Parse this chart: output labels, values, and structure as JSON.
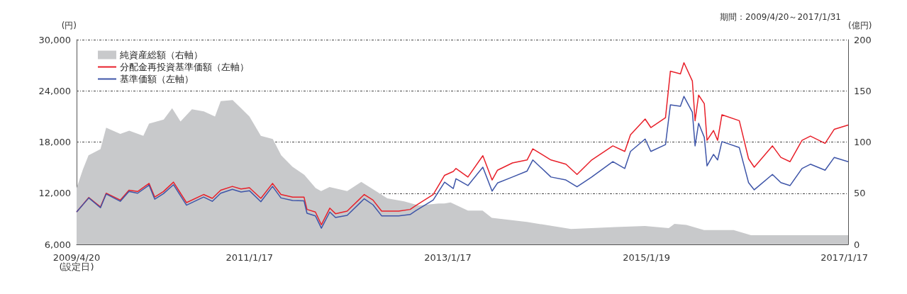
{
  "chart_data": {
    "type": "line",
    "ylabel": "(円)",
    "y2label": "(億円)",
    "annotations": [
      "期間：2009/4/20～2017/1/31"
    ],
    "xlim": [
      "2009-04-20",
      "2017-01-31"
    ],
    "xticks": [
      {
        "value": "2009-04-20",
        "label": "2009/4/20\n(設定日)"
      },
      {
        "value": "2011-01-17",
        "label": "2011/1/17"
      },
      {
        "value": "2013-01-17",
        "label": "2013/1/17"
      },
      {
        "value": "2015-01-19",
        "label": "2015/1/19"
      },
      {
        "value": "2017-01-17",
        "label": "2017/1/17"
      }
    ],
    "ylim": [
      6000,
      30000
    ],
    "yticks": [
      {
        "value": 6000,
        "label": "6,000"
      },
      {
        "value": 12000,
        "label": "12,000"
      },
      {
        "value": 18000,
        "label": "18,000"
      },
      {
        "value": 24000,
        "label": "24,000"
      },
      {
        "value": 30000,
        "label": "30,000"
      }
    ],
    "y2lim": [
      0,
      200
    ],
    "y2ticks": [
      0,
      50,
      100,
      150,
      200
    ],
    "grid": "y",
    "legend": "top left",
    "series": [
      {
        "name": "純資産総額（右軸）",
        "type": "area",
        "axis": "y2",
        "color": "#c8c9cb",
        "x": [
          "2009-04-20",
          "2009-05-13",
          "2009-06-03",
          "2009-07-17",
          "2009-08-07",
          "2009-09-28",
          "2009-10-31",
          "2009-12-22",
          "2010-01-12",
          "2010-03-07",
          "2010-04-07",
          "2010-05-08",
          "2010-06-19",
          "2010-08-02",
          "2010-09-12",
          "2010-10-03",
          "2010-11-16",
          "2010-12-17",
          "2011-01-17",
          "2011-02-28",
          "2011-04-13",
          "2011-05-14",
          "2011-06-24",
          "2011-08-07",
          "2011-09-18",
          "2011-10-08",
          "2011-11-08",
          "2012-01-12",
          "2012-03-04",
          "2012-04-27",
          "2012-06-08",
          "2012-08-09",
          "2012-10-02",
          "2012-12-14",
          "2013-01-04",
          "2013-01-27",
          "2013-04-01",
          "2013-05-25",
          "2013-06-28",
          "2013-11-04",
          "2014-04-16",
          "2014-09-27",
          "2015-01-13",
          "2015-04-11",
          "2015-05-02",
          "2015-06-15",
          "2015-08-19",
          "2015-12-06",
          "2016-02-08",
          "2017-01-31"
        ],
        "values": [
          55,
          73,
          87,
          93,
          114,
          108,
          111,
          106,
          118,
          122,
          133,
          120,
          132,
          130,
          125,
          140,
          141,
          133,
          125,
          106,
          103,
          87,
          76,
          68,
          55,
          52,
          56,
          52,
          61,
          52,
          45,
          42,
          38,
          40,
          40,
          41,
          33,
          33,
          26,
          22,
          15,
          17,
          18,
          16,
          20,
          19,
          14,
          14,
          9,
          9
        ]
      },
      {
        "name": "分配金再投資基準価額（左軸）",
        "color": "#e8202a",
        "x": [
          "2009-04-20",
          "2009-06-04",
          "2009-07-17",
          "2009-08-07",
          "2009-09-28",
          "2009-10-30",
          "2009-12-01",
          "2010-01-12",
          "2010-02-02",
          "2010-03-06",
          "2010-04-12",
          "2010-05-30",
          "2010-08-01",
          "2010-09-02",
          "2010-10-03",
          "2010-11-15",
          "2010-12-17",
          "2011-01-17",
          "2011-02-28",
          "2011-04-12",
          "2011-05-13",
          "2011-06-25",
          "2011-08-06",
          "2011-08-17",
          "2011-09-17",
          "2011-10-09",
          "2011-11-09",
          "2011-11-30",
          "2012-01-12",
          "2012-03-15",
          "2012-04-16",
          "2012-05-18",
          "2012-07-20",
          "2012-08-31",
          "2012-09-21",
          "2012-11-24",
          "2013-01-05",
          "2013-02-06",
          "2013-02-16",
          "2013-04-01",
          "2013-05-26",
          "2013-06-29",
          "2013-07-19",
          "2013-09-12",
          "2013-11-05",
          "2013-11-26",
          "2014-02-01",
          "2014-03-28",
          "2014-05-08",
          "2014-07-01",
          "2014-09-17",
          "2014-10-31",
          "2014-11-21",
          "2015-01-14",
          "2015-02-04",
          "2015-03-30",
          "2015-04-17",
          "2015-05-24",
          "2015-06-06",
          "2015-07-07",
          "2015-07-17",
          "2015-07-30",
          "2015-08-20",
          "2015-08-30",
          "2015-09-23",
          "2015-10-08",
          "2015-10-24",
          "2015-12-27",
          "2016-01-30",
          "2016-02-20",
          "2016-04-27",
          "2016-05-28",
          "2016-07-01",
          "2016-08-14",
          "2016-09-14",
          "2016-11-07",
          "2016-12-11",
          "2017-01-31"
        ],
        "values": [
          9800,
          11500,
          10400,
          12000,
          11200,
          12350,
          12200,
          13150,
          11550,
          12200,
          13300,
          10900,
          11850,
          11400,
          12350,
          12800,
          12500,
          12650,
          11400,
          13150,
          11850,
          11550,
          11550,
          10100,
          9800,
          8300,
          10250,
          9600,
          9900,
          11850,
          11200,
          9900,
          9900,
          10100,
          10550,
          11850,
          14100,
          14550,
          14900,
          13900,
          16400,
          13550,
          14700,
          15550,
          15900,
          17200,
          15900,
          15400,
          14200,
          15900,
          17550,
          16900,
          18850,
          20700,
          19700,
          20850,
          26300,
          26000,
          27300,
          25150,
          20500,
          23500,
          22500,
          18200,
          19350,
          18200,
          21200,
          20500,
          16050,
          15050,
          17550,
          16200,
          15700,
          18200,
          18700,
          17850,
          19500,
          20000
        ]
      },
      {
        "name": "基準価額（左軸）",
        "color": "#3e55a8",
        "x": [
          "2009-04-20",
          "2009-06-04",
          "2009-07-17",
          "2009-08-07",
          "2009-09-28",
          "2009-10-30",
          "2009-12-01",
          "2010-01-12",
          "2010-02-02",
          "2010-03-06",
          "2010-04-12",
          "2010-05-30",
          "2010-08-01",
          "2010-09-02",
          "2010-10-03",
          "2010-11-15",
          "2010-12-17",
          "2011-01-17",
          "2011-02-28",
          "2011-04-12",
          "2011-05-13",
          "2011-06-25",
          "2011-08-06",
          "2011-08-17",
          "2011-09-17",
          "2011-10-09",
          "2011-11-09",
          "2011-11-30",
          "2012-01-12",
          "2012-03-15",
          "2012-04-16",
          "2012-05-18",
          "2012-07-20",
          "2012-08-31",
          "2012-09-21",
          "2012-11-24",
          "2013-01-05",
          "2013-02-06",
          "2013-02-16",
          "2013-04-01",
          "2013-05-26",
          "2013-06-29",
          "2013-07-19",
          "2013-09-12",
          "2013-11-05",
          "2013-11-26",
          "2014-02-01",
          "2014-03-28",
          "2014-05-08",
          "2014-07-01",
          "2014-09-17",
          "2014-10-31",
          "2014-11-21",
          "2015-01-14",
          "2015-02-04",
          "2015-03-30",
          "2015-04-17",
          "2015-05-24",
          "2015-06-06",
          "2015-07-07",
          "2015-07-17",
          "2015-07-30",
          "2015-08-20",
          "2015-08-30",
          "2015-09-23",
          "2015-10-08",
          "2015-10-24",
          "2015-12-27",
          "2016-01-30",
          "2016-02-20",
          "2016-04-27",
          "2016-05-28",
          "2016-07-01",
          "2016-08-14",
          "2016-09-14",
          "2016-11-07",
          "2016-12-11",
          "2017-01-31"
        ],
        "values": [
          9800,
          11450,
          10300,
          11900,
          11050,
          12200,
          12000,
          12950,
          11300,
          11950,
          13000,
          10600,
          11550,
          11050,
          12000,
          12450,
          12150,
          12300,
          11000,
          12800,
          11450,
          11150,
          11100,
          9650,
          9350,
          7900,
          9800,
          9150,
          9400,
          11350,
          10650,
          9350,
          9350,
          9500,
          9950,
          11200,
          13300,
          12550,
          13700,
          12900,
          15050,
          12250,
          13200,
          13900,
          14600,
          15900,
          13900,
          13550,
          12750,
          13900,
          15700,
          14900,
          16900,
          18350,
          16900,
          17700,
          22350,
          22200,
          23350,
          21500,
          17550,
          20200,
          18550,
          15200,
          16550,
          15900,
          18050,
          17350,
          13250,
          12400,
          14200,
          13250,
          12900,
          14900,
          15400,
          14700,
          16200,
          15700
        ]
      }
    ]
  }
}
